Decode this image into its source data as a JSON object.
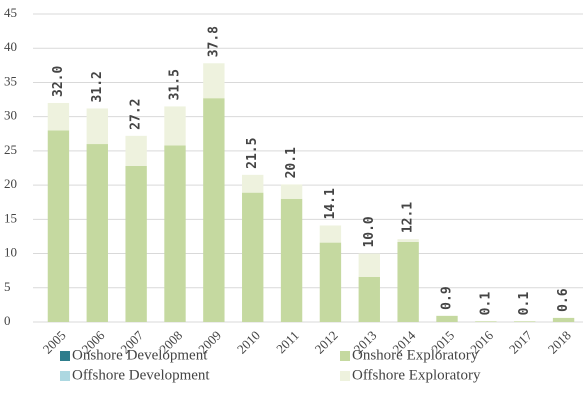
{
  "chart_data": {
    "type": "stacked_bar",
    "categories": [
      "2005",
      "2006",
      "2007",
      "2008",
      "2009",
      "2010",
      "2011",
      "2012",
      "2013",
      "2014",
      "2015",
      "2016",
      "2017",
      "2018"
    ],
    "series": [
      {
        "name": "Onshore Development",
        "color": "#2e7d8c",
        "values": [
          0,
          0,
          0,
          0,
          0,
          0,
          0,
          0,
          0,
          0,
          0,
          0,
          0,
          0
        ]
      },
      {
        "name": "Onshore Exploratory",
        "color": "#c5d9a0",
        "values": [
          28.0,
          26.0,
          22.8,
          25.8,
          32.7,
          18.9,
          18.0,
          11.6,
          6.6,
          11.7,
          0.9,
          0.1,
          0.1,
          0.6
        ]
      },
      {
        "name": "Offshore Development",
        "color": "#add8e1",
        "values": [
          0,
          0,
          0,
          0,
          0,
          0,
          0,
          0,
          0,
          0,
          0,
          0,
          0,
          0
        ]
      },
      {
        "name": "Offshore Exploratory",
        "color": "#eef2de",
        "values": [
          4.0,
          5.2,
          4.4,
          5.7,
          5.1,
          2.6,
          2.1,
          2.5,
          3.4,
          0.4,
          0,
          0,
          0,
          0
        ]
      }
    ],
    "totals": {
      "values": [
        32.0,
        31.2,
        27.2,
        31.5,
        37.8,
        21.5,
        20.1,
        14.1,
        10.0,
        12.1,
        0.9,
        0.1,
        0.1,
        0.6
      ],
      "value_labels": [
        "32.0",
        "31.2",
        "27.2",
        "31.5",
        "37.8",
        "21.5",
        "20.1",
        "14.1",
        "10.0",
        "12.1",
        "0.9",
        "0.1",
        "0.1",
        "0.6"
      ]
    },
    "ylim": [
      0,
      45
    ],
    "yticks": [
      0,
      5,
      10,
      15,
      20,
      25,
      30,
      35,
      40,
      45
    ],
    "grid": true
  }
}
